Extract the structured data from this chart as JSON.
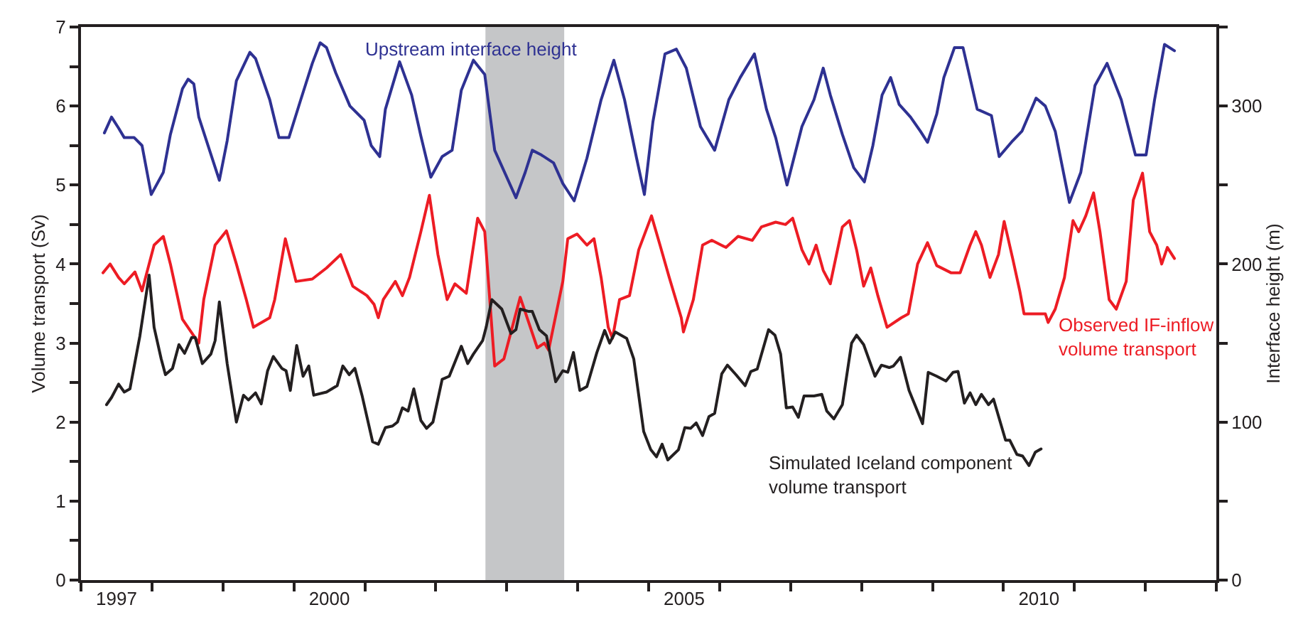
{
  "chart_data": {
    "type": "line",
    "xlabel": null,
    "ylabel": "Volume transport (Sv)",
    "y2label": "Interface height (m)",
    "xlim": [
      1997,
      2013
    ],
    "xticks": [
      {
        "value": 1997,
        "label": null
      },
      {
        "value": 1997.5,
        "label": "1997"
      },
      {
        "value": 1998,
        "label": null
      },
      {
        "value": 1999,
        "label": null
      },
      {
        "value": 2000,
        "label": null
      },
      {
        "value": 2000.5,
        "label": "2000"
      },
      {
        "value": 2001,
        "label": null
      },
      {
        "value": 2002,
        "label": null
      },
      {
        "value": 2003,
        "label": null
      },
      {
        "value": 2004,
        "label": null
      },
      {
        "value": 2005,
        "label": null
      },
      {
        "value": 2005.5,
        "label": "2005"
      },
      {
        "value": 2006,
        "label": null
      },
      {
        "value": 2007,
        "label": null
      },
      {
        "value": 2008,
        "label": null
      },
      {
        "value": 2009,
        "label": null
      },
      {
        "value": 2010,
        "label": null
      },
      {
        "value": 2010.5,
        "label": "2010"
      },
      {
        "value": 2011,
        "label": null
      },
      {
        "value": 2012,
        "label": null
      },
      {
        "value": 2013,
        "label": null
      }
    ],
    "ylim": [
      0,
      7
    ],
    "yticks": [
      0,
      {
        "value": 0.5,
        "label": null
      },
      1,
      {
        "value": 1.5,
        "label": null
      },
      2,
      {
        "value": 2.5,
        "label": null
      },
      3,
      {
        "value": 3.5,
        "label": null
      },
      4,
      {
        "value": 4.5,
        "label": null
      },
      5,
      {
        "value": 5.5,
        "label": null
      },
      6,
      {
        "value": 6.5,
        "label": null
      },
      7
    ],
    "y2lim": [
      0,
      350
    ],
    "y2ticks": [
      0,
      {
        "value": 50,
        "label": null
      },
      100,
      {
        "value": 150,
        "label": null
      },
      200,
      {
        "value": 250,
        "label": null
      },
      300,
      {
        "value": 350,
        "label": null
      }
    ],
    "bands": [
      {
        "axis": "x",
        "from": 2002.7,
        "to": 2003.81,
        "color": "#c5c6c8"
      }
    ],
    "grid": false,
    "legend": false,
    "marker": "none",
    "line_style": "solid",
    "series": [
      {
        "name": "Upstream interface height",
        "color": "#2e3192",
        "axis": "y2",
        "x": [
          1997.33,
          1997.43,
          1997.53,
          1997.61,
          1997.75,
          1997.86,
          1997.99,
          1998.16,
          1998.26,
          1998.43,
          1998.51,
          1998.59,
          1998.66,
          1998.79,
          1998.95,
          1999.06,
          1999.19,
          1999.38,
          1999.46,
          1999.66,
          1999.79,
          1999.93,
          2000.09,
          2000.26,
          2000.37,
          2000.46,
          2000.59,
          2000.79,
          2000.99,
          2001.09,
          2001.21,
          2001.29,
          2001.49,
          2001.66,
          2001.79,
          2001.93,
          2002.09,
          2002.23,
          2002.36,
          2002.53,
          2002.69,
          2002.83,
          2003.13,
          2003.26,
          2003.36,
          2003.49,
          2003.66,
          2003.79,
          2003.95,
          2004.13,
          2004.33,
          2004.51,
          2004.66,
          2004.83,
          2004.94,
          2005.06,
          2005.23,
          2005.39,
          2005.53,
          2005.73,
          2005.93,
          2006.13,
          2006.29,
          2006.49,
          2006.66,
          2006.79,
          2006.95,
          2007.16,
          2007.33,
          2007.46,
          2007.56,
          2007.73,
          2007.89,
          2008.04,
          2008.16,
          2008.29,
          2008.41,
          2008.53,
          2008.69,
          2008.83,
          2008.93,
          2009.06,
          2009.16,
          2009.31,
          2009.43,
          2009.63,
          2009.83,
          2009.94,
          2010.13,
          2010.26,
          2010.46,
          2010.59,
          2010.73,
          2010.93,
          2011.09,
          2011.29,
          2011.46,
          2011.66,
          2011.86,
          2012.01,
          2012.13,
          2012.27,
          2012.41
        ],
        "values": [
          283,
          293,
          286,
          280,
          280,
          275,
          244,
          258,
          282,
          311,
          317,
          314,
          293,
          275,
          253,
          278,
          316,
          334,
          330,
          304,
          280,
          280,
          303,
          327,
          340,
          337,
          321,
          300,
          291,
          275,
          268,
          298,
          328,
          307,
          281,
          255,
          268,
          272,
          310,
          329,
          320,
          272,
          242,
          258,
          272,
          269,
          264,
          251,
          240,
          267,
          304,
          329,
          304,
          267,
          244,
          290,
          333,
          336,
          324,
          287,
          272,
          304,
          318,
          333,
          298,
          280,
          250,
          287,
          304,
          324,
          307,
          282,
          261,
          252,
          275,
          307,
          318,
          301,
          293,
          284,
          277,
          295,
          318,
          337,
          337,
          298,
          294,
          268,
          278,
          284,
          305,
          300,
          284,
          239,
          258,
          313,
          327,
          304,
          269,
          269,
          304,
          339,
          335
        ]
      },
      {
        "name": "Observed IF-inflow\nvolume transport",
        "color": "#ed1c24",
        "x": [
          1997.31,
          1997.41,
          1997.53,
          1997.61,
          1997.76,
          1997.86,
          1998.03,
          1998.16,
          1998.26,
          1998.43,
          1998.66,
          1998.73,
          1998.89,
          1999.05,
          1999.19,
          1999.33,
          1999.43,
          1999.66,
          1999.73,
          1999.88,
          2000.03,
          2000.26,
          2000.46,
          2000.66,
          2000.83,
          2001.03,
          2001.13,
          2001.19,
          2001.26,
          2001.43,
          2001.53,
          2001.63,
          2001.79,
          2001.91,
          2002.03,
          2002.16,
          2002.27,
          2002.43,
          2002.59,
          2002.69,
          2002.83,
          2002.96,
          2003.06,
          2003.19,
          2003.43,
          2003.53,
          2003.59,
          2003.79,
          2003.86,
          2003.99,
          2004.13,
          2004.23,
          2004.33,
          2004.43,
          2004.49,
          2004.59,
          2004.73,
          2004.86,
          2005.04,
          2005.16,
          2005.29,
          2005.46,
          2005.49,
          2005.63,
          2005.76,
          2005.89,
          2006.09,
          2006.26,
          2006.46,
          2006.59,
          2006.79,
          2006.93,
          2007.03,
          2007.16,
          2007.26,
          2007.36,
          2007.46,
          2007.56,
          2007.73,
          2007.83,
          2007.93,
          2008.03,
          2008.13,
          2008.23,
          2008.36,
          2008.56,
          2008.66,
          2008.79,
          2008.93,
          2009.06,
          2009.26,
          2009.39,
          2009.53,
          2009.61,
          2009.69,
          2009.81,
          2009.93,
          2010.01,
          2010.13,
          2010.23,
          2010.29,
          2010.59,
          2010.63,
          2010.73,
          2010.86,
          2010.98,
          2011.06,
          2011.16,
          2011.27,
          2011.36,
          2011.49,
          2011.59,
          2011.73,
          2011.83,
          2011.96,
          2012.06,
          2012.16,
          2012.23,
          2012.31,
          2012.41
        ],
        "values": [
          3.89,
          4.0,
          3.83,
          3.75,
          3.9,
          3.66,
          4.24,
          4.35,
          4.0,
          3.3,
          3.0,
          3.55,
          4.24,
          4.42,
          4.0,
          3.55,
          3.2,
          3.32,
          3.55,
          4.32,
          3.78,
          3.81,
          3.95,
          4.12,
          3.72,
          3.6,
          3.49,
          3.32,
          3.55,
          3.78,
          3.6,
          3.83,
          4.41,
          4.87,
          4.12,
          3.55,
          3.75,
          3.63,
          4.58,
          4.41,
          2.71,
          2.8,
          3.14,
          3.58,
          2.94,
          3.0,
          2.91,
          3.78,
          4.32,
          4.38,
          4.24,
          4.32,
          3.83,
          3.2,
          3.06,
          3.55,
          3.6,
          4.18,
          4.61,
          4.24,
          3.83,
          3.32,
          3.14,
          3.55,
          4.24,
          4.3,
          4.21,
          4.35,
          4.3,
          4.47,
          4.53,
          4.5,
          4.58,
          4.18,
          4.0,
          4.24,
          3.92,
          3.75,
          4.47,
          4.55,
          4.18,
          3.72,
          3.95,
          3.6,
          3.2,
          3.32,
          3.37,
          4.0,
          4.27,
          3.98,
          3.89,
          3.89,
          4.24,
          4.41,
          4.24,
          3.83,
          4.12,
          4.54,
          4.07,
          3.66,
          3.37,
          3.37,
          3.26,
          3.43,
          3.83,
          4.55,
          4.41,
          4.61,
          4.9,
          4.41,
          3.55,
          3.43,
          3.78,
          4.81,
          5.15,
          4.41,
          4.24,
          4.0,
          4.21,
          4.07
        ]
      },
      {
        "name": "Simulated Iceland component\nvolume transport",
        "color": "#231f20",
        "x": [
          1997.36,
          1997.43,
          1997.53,
          1997.61,
          1997.69,
          1997.83,
          1997.96,
          1998.03,
          1998.13,
          1998.19,
          1998.29,
          1998.38,
          1998.46,
          1998.56,
          1998.61,
          1998.71,
          1998.83,
          1998.89,
          1998.95,
          1999.06,
          1999.19,
          1999.29,
          1999.36,
          1999.46,
          1999.54,
          1999.63,
          1999.71,
          1999.83,
          1999.89,
          1999.95,
          2000.04,
          2000.13,
          2000.21,
          2000.28,
          2000.46,
          2000.61,
          2000.69,
          2000.78,
          2000.86,
          2000.96,
          2001.11,
          2001.19,
          2001.29,
          2001.39,
          2001.46,
          2001.53,
          2001.61,
          2001.69,
          2001.79,
          2001.87,
          2001.96,
          2002.09,
          2002.19,
          2002.36,
          2002.45,
          2002.53,
          2002.66,
          2002.71,
          2002.79,
          2002.93,
          2003.06,
          2003.13,
          2003.19,
          2003.31,
          2003.36,
          2003.46,
          2003.56,
          2003.69,
          2003.79,
          2003.86,
          2003.94,
          2004.03,
          2004.13,
          2004.27,
          2004.38,
          2004.45,
          2004.53,
          2004.69,
          2004.79,
          2004.93,
          2005.03,
          2005.11,
          2005.19,
          2005.27,
          2005.42,
          2005.51,
          2005.59,
          2005.67,
          2005.76,
          2005.85,
          2005.93,
          2006.03,
          2006.11,
          2006.23,
          2006.36,
          2006.44,
          2006.53,
          2006.69,
          2006.78,
          2006.86,
          2006.94,
          2007.03,
          2007.11,
          2007.19,
          2007.33,
          2007.44,
          2007.51,
          2007.61,
          2007.73,
          2007.86,
          2007.93,
          2008.03,
          2008.19,
          2008.28,
          2008.39,
          2008.45,
          2008.55,
          2008.67,
          2008.86,
          2008.94,
          2009.06,
          2009.19,
          2009.29,
          2009.36,
          2009.45,
          2009.53,
          2009.61,
          2009.69,
          2009.79,
          2009.86,
          2010.03,
          2010.09,
          2010.19,
          2010.27,
          2010.36,
          2010.45,
          2010.53
        ],
        "values": [
          2.22,
          2.31,
          2.48,
          2.38,
          2.42,
          3.09,
          3.86,
          3.2,
          2.8,
          2.6,
          2.68,
          2.98,
          2.87,
          3.07,
          3.07,
          2.74,
          2.86,
          3.03,
          3.52,
          2.74,
          2.0,
          2.34,
          2.28,
          2.37,
          2.23,
          2.65,
          2.83,
          2.68,
          2.65,
          2.4,
          2.97,
          2.58,
          2.71,
          2.34,
          2.38,
          2.46,
          2.71,
          2.6,
          2.68,
          2.34,
          1.75,
          1.72,
          1.93,
          1.95,
          2.0,
          2.18,
          2.14,
          2.42,
          2.02,
          1.92,
          2.0,
          2.54,
          2.58,
          2.96,
          2.74,
          2.86,
          3.03,
          3.2,
          3.55,
          3.43,
          3.12,
          3.17,
          3.43,
          3.4,
          3.4,
          3.17,
          3.09,
          2.51,
          2.65,
          2.63,
          2.88,
          2.4,
          2.45,
          2.88,
          3.16,
          3.0,
          3.14,
          3.06,
          2.8,
          1.88,
          1.65,
          1.56,
          1.72,
          1.52,
          1.65,
          1.93,
          1.92,
          1.99,
          1.83,
          2.07,
          2.11,
          2.61,
          2.72,
          2.6,
          2.46,
          2.64,
          2.67,
          3.17,
          3.1,
          2.86,
          2.18,
          2.19,
          2.06,
          2.33,
          2.33,
          2.35,
          2.14,
          2.04,
          2.22,
          3.0,
          3.1,
          2.98,
          2.58,
          2.72,
          2.69,
          2.71,
          2.82,
          2.4,
          1.98,
          2.63,
          2.58,
          2.52,
          2.63,
          2.64,
          2.24,
          2.37,
          2.22,
          2.35,
          2.22,
          2.29,
          1.77,
          1.77,
          1.59,
          1.57,
          1.45,
          1.62,
          1.66
        ]
      }
    ]
  }
}
